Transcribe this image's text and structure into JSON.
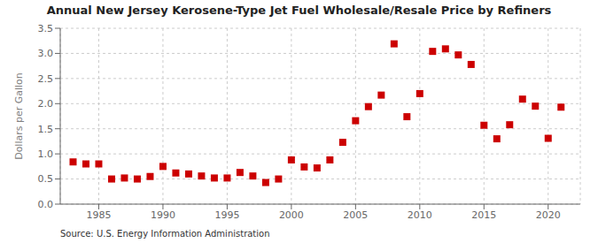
{
  "chart_data": {
    "type": "scatter",
    "title": "Annual New Jersey Kerosene-Type Jet Fuel Wholesale/Resale Price by Refiners",
    "ylabel": "Dollars per Gallon",
    "annotations": [
      "Source: U.S. Energy Information Administration"
    ],
    "x": [
      1983,
      1984,
      1985,
      1986,
      1987,
      1988,
      1989,
      1990,
      1991,
      1992,
      1993,
      1994,
      1995,
      1996,
      1997,
      1998,
      1999,
      2000,
      2001,
      2002,
      2003,
      2004,
      2005,
      2006,
      2007,
      2008,
      2009,
      2010,
      2011,
      2012,
      2013,
      2014,
      2015,
      2016,
      2017,
      2018,
      2019,
      2020,
      2021
    ],
    "values": [
      0.84,
      0.8,
      0.8,
      0.5,
      0.52,
      0.5,
      0.55,
      0.75,
      0.62,
      0.6,
      0.56,
      0.52,
      0.52,
      0.63,
      0.56,
      0.43,
      0.5,
      0.88,
      0.74,
      0.72,
      0.88,
      1.23,
      1.66,
      1.94,
      2.17,
      3.19,
      1.74,
      2.2,
      3.04,
      3.09,
      2.97,
      2.78,
      1.57,
      1.3,
      1.58,
      2.09,
      1.95,
      1.31,
      1.93
    ],
    "color": "#cc0000",
    "marker": "square",
    "grid": true,
    "xlim": [
      1982,
      2022.5
    ],
    "ylim": [
      0.0,
      3.5
    ],
    "xticks": [
      1985,
      1990,
      1995,
      2000,
      2005,
      2010,
      2015,
      2020
    ],
    "yticks": [
      {
        "value": 0,
        "label": "0.0"
      },
      0.5,
      {
        "value": 1,
        "label": "1.0"
      },
      1.5,
      {
        "value": 2,
        "label": "2.0"
      },
      2.5,
      {
        "value": 3,
        "label": "3.0"
      },
      3.5
    ]
  }
}
